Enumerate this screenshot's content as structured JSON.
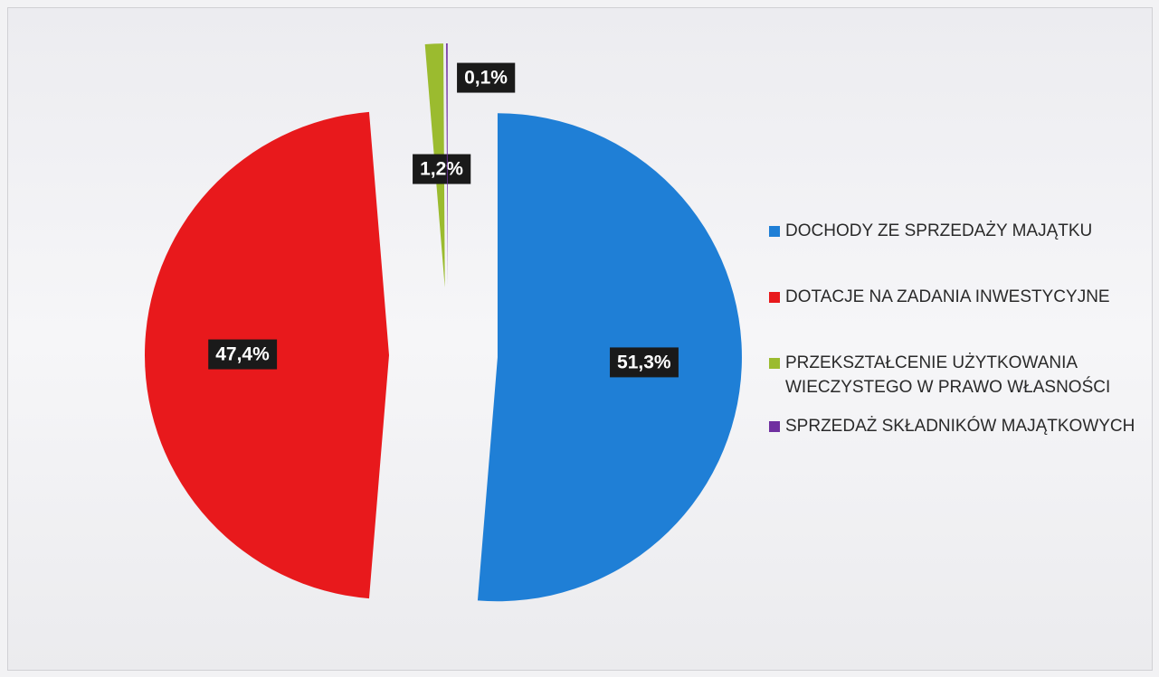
{
  "chart_data": {
    "type": "pie",
    "categories": [
      "DOCHODY ZE SPRZEDAŻY MAJĄTKU",
      "DOTACJE NA ZADANIA INWESTYCYJNE",
      "PRZEKSZTAŁCENIE UŻYTKOWANIA WIECZYSTEGO W PRAWO WŁASNOŚCI",
      "SPRZEDAŻ SKŁADNIKÓW MAJĄTKOWYCH"
    ],
    "values": [
      51.3,
      47.4,
      1.2,
      0.1
    ],
    "value_labels": [
      "51,3%",
      "47,4%",
      "1,2%",
      "0,1%"
    ],
    "colors": [
      "#1f7fd6",
      "#e8191c",
      "#9bbb2f",
      "#7030a0"
    ],
    "legend": "right"
  }
}
